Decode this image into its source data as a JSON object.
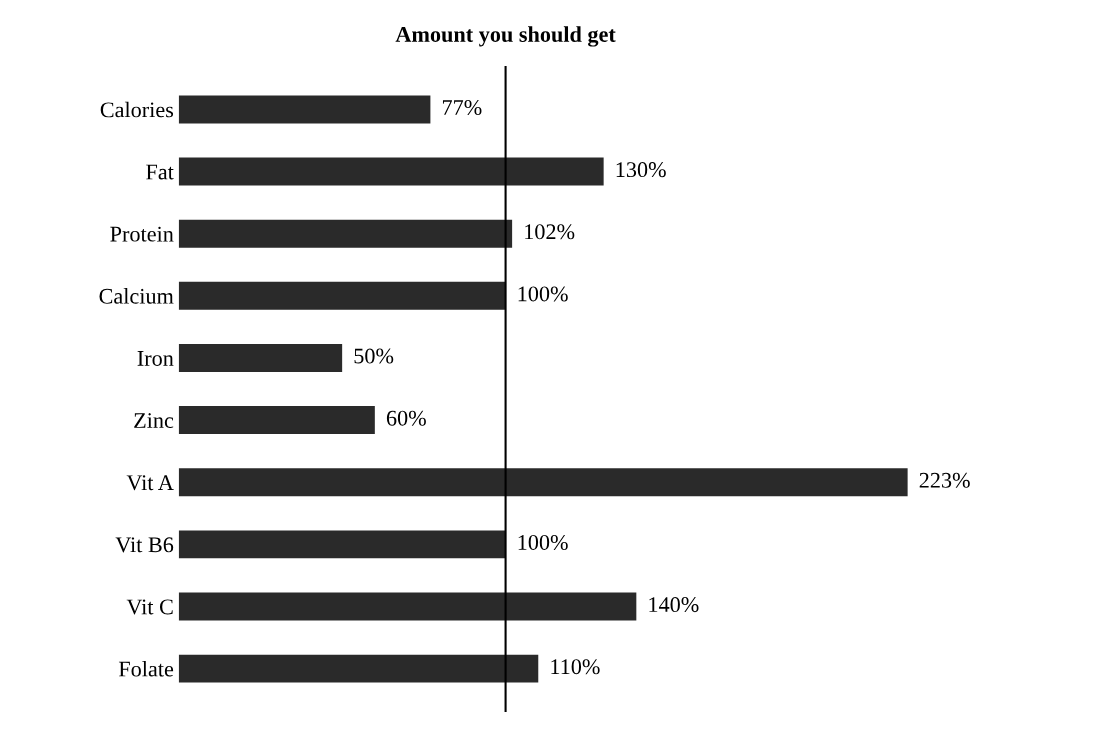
{
  "chart_data": {
    "type": "bar",
    "orientation": "horizontal",
    "categories": [
      "Calories",
      "Fat",
      "Protein",
      "Calcium",
      "Iron",
      "Zinc",
      "Vit A",
      "Vit B6",
      "Vit C",
      "Folate"
    ],
    "values": [
      77,
      130,
      102,
      100,
      50,
      60,
      223,
      100,
      140,
      110
    ],
    "value_labels": [
      "77%",
      "130%",
      "102%",
      "100%",
      "50%",
      "60%",
      "223%",
      "100%",
      "140%",
      "110%"
    ],
    "color": "#2a2a2a",
    "ref_lines": [
      {
        "axis": "x",
        "value": 100,
        "label": "Amount you should get",
        "color": "#000000"
      }
    ],
    "tick_labels": "y",
    "grid": false,
    "legend": false
  }
}
